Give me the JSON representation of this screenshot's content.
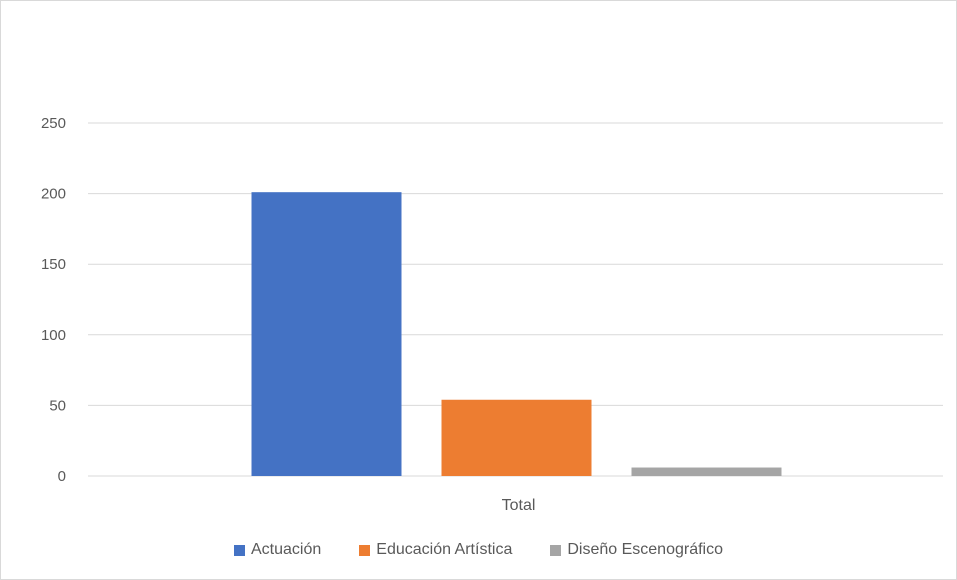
{
  "chart_data": {
    "type": "bar",
    "categories": [
      "Total"
    ],
    "series": [
      {
        "name": "Actuación",
        "values": [
          201
        ],
        "color": "#4472C4"
      },
      {
        "name": "Educación Artística",
        "values": [
          54
        ],
        "color": "#ED7D31"
      },
      {
        "name": "Diseño Escenográfico",
        "values": [
          6
        ],
        "color": "#A5A5A5"
      }
    ],
    "ylim": [
      0,
      250
    ],
    "yticks": [
      "0",
      "50",
      "100",
      "150",
      "200",
      "250"
    ],
    "grid": true,
    "legend_position": "bottom"
  }
}
